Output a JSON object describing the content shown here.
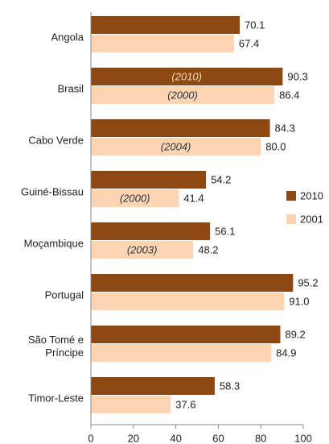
{
  "chart_data": {
    "type": "barh",
    "categories": [
      "Angola",
      "Brasil",
      "Cabo Verde",
      "Guiné-Bissau",
      "Moçambique",
      "Portugal",
      "São Tomé e Príncipe",
      "Timor-Leste"
    ],
    "series": [
      {
        "name": "2010",
        "color": "#8c4a12",
        "values": [
          70.1,
          90.3,
          84.3,
          54.2,
          56.1,
          95.2,
          89.2,
          58.3
        ],
        "annotations": [
          null,
          "(2010)",
          null,
          null,
          null,
          null,
          null,
          null
        ]
      },
      {
        "name": "2001",
        "color": "#fbd5b5",
        "values": [
          67.4,
          86.4,
          80.0,
          41.4,
          48.2,
          91.0,
          84.9,
          37.6
        ],
        "value_labels": [
          "67.4",
          "86.4",
          "80.0",
          "41.4",
          "48.2",
          "91.0",
          "84.9",
          "37.6"
        ],
        "annotations": [
          null,
          "(2000)",
          "(2004)",
          "(2000)",
          "(2003)",
          null,
          null,
          null
        ]
      }
    ],
    "xlim": [
      0,
      100
    ],
    "xticks": [
      0,
      20,
      40,
      60,
      80,
      100
    ],
    "legend": "right"
  }
}
